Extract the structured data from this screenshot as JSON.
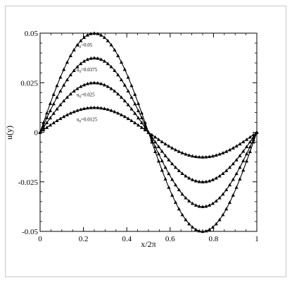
{
  "chart_data": {
    "type": "line",
    "title": "",
    "xlabel": "x/2π",
    "ylabel": "u(y)",
    "xlim": [
      0,
      1
    ],
    "ylim": [
      -0.05,
      0.05
    ],
    "x_ticks": [
      "0",
      "0.2",
      "0.4",
      "0.6",
      "0.8",
      "1"
    ],
    "y_ticks": [
      "-0.05",
      "-0.025",
      "0",
      "0.025",
      "0.05"
    ],
    "x_tick_values": [
      0,
      0.2,
      0.4,
      0.6,
      0.8,
      1
    ],
    "y_tick_values": [
      -0.05,
      -0.025,
      0,
      0.025,
      0.05
    ],
    "grid": false,
    "line_color": "#000000",
    "marker": "triangle",
    "series": [
      {
        "amplitude": 0.05,
        "annotation": "u0=0.05",
        "annotation_base": "u",
        "annotation_sub": "0",
        "annotation_rest": "=0.05"
      },
      {
        "amplitude": 0.0375,
        "annotation": "u0=0.0375",
        "annotation_base": "u",
        "annotation_sub": "0",
        "annotation_rest": "=0.0375"
      },
      {
        "amplitude": 0.025,
        "annotation": "u0=0.025",
        "annotation_base": "u",
        "annotation_sub": "0",
        "annotation_rest": "=0.025"
      },
      {
        "amplitude": 0.0125,
        "annotation": "u0=0.0125",
        "annotation_base": "u",
        "annotation_sub": "0",
        "annotation_rest": "=0.0125"
      }
    ]
  }
}
